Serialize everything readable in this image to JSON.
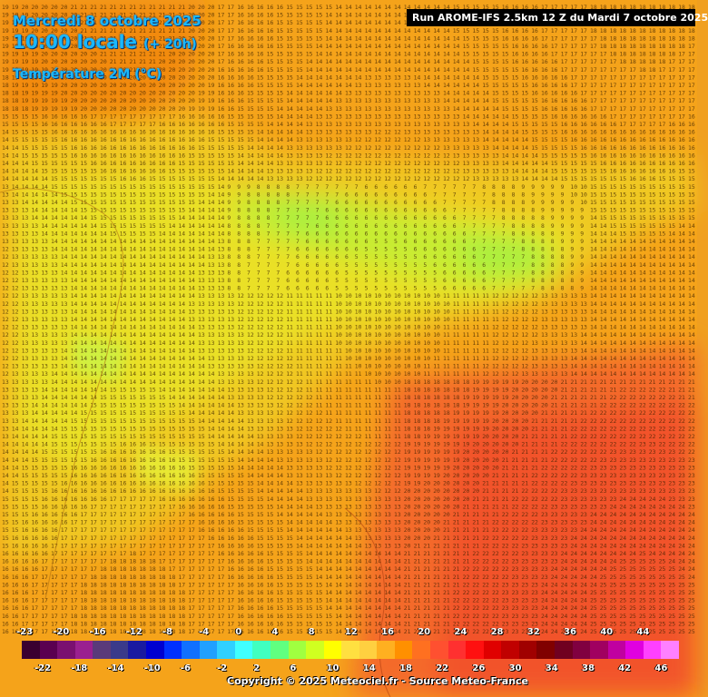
{
  "header": {
    "date": "Mercredi 8 octobre 2025",
    "time": "10:00 locale",
    "offset": "(+ 20h)",
    "parameter": "Température 2M (°C)"
  },
  "run_label": "Run AROME-IFS 2.5km 12 Z du Mardi 7 octobre 2025",
  "copyright": "Copyright © 2025 Meteociel.fr - Source Meteo-France",
  "legend": {
    "top_labels": [
      "-23",
      "-20",
      "-16",
      "-12",
      "-8",
      "-4",
      "0",
      "4",
      "8",
      "12",
      "16",
      "20",
      "24",
      "28",
      "32",
      "36",
      "40",
      "44"
    ],
    "bottom_labels": [
      "-22",
      "-18",
      "-14",
      "-10",
      "-6",
      "-2",
      "2",
      "6",
      "10",
      "14",
      "18",
      "22",
      "26",
      "30",
      "34",
      "38",
      "42",
      "46"
    ],
    "colors": [
      "#3a0030",
      "#5a0050",
      "#7a1070",
      "#9a2090",
      "#5a3a7a",
      "#3a3a8a",
      "#1a1aa0",
      "#0000d0",
      "#0030ff",
      "#1070ff",
      "#20a0ff",
      "#30d0ff",
      "#40ffff",
      "#40ffc0",
      "#60ff80",
      "#a0ff40",
      "#d0ff20",
      "#ffff00",
      "#ffe040",
      "#ffd040",
      "#ffb020",
      "#ff9000",
      "#ff7020",
      "#ff5030",
      "#ff3030",
      "#ff1010",
      "#e00000",
      "#c00000",
      "#a00000",
      "#800000",
      "#700020",
      "#800040",
      "#a00060",
      "#c000a0",
      "#e000e0",
      "#ff40ff",
      "#ff80ff"
    ]
  }
}
